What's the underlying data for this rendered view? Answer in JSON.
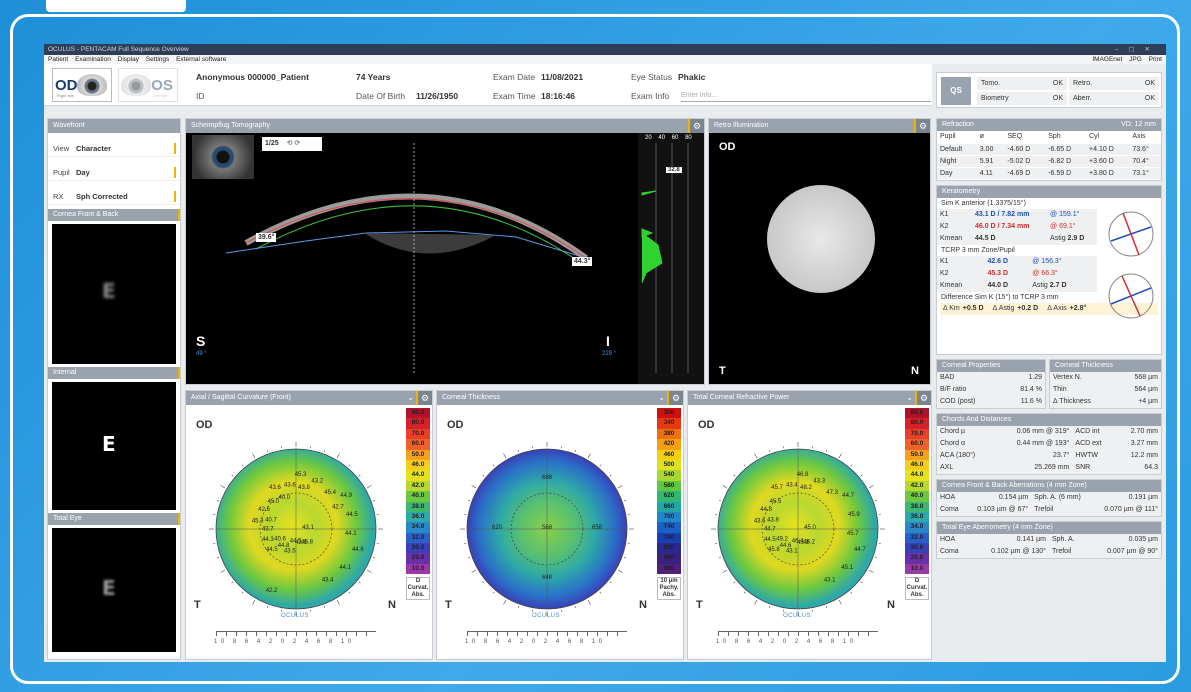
{
  "window": {
    "title": "OCULUS - PENTACAM  Full Sequence Overview"
  },
  "menu": {
    "items": [
      "Patient",
      "Examination",
      "Display",
      "Settings",
      "External software"
    ],
    "right": [
      "IMAGEnet",
      "JPG",
      "Print"
    ]
  },
  "header": {
    "od_label": "OD",
    "od_sub": "Right eye",
    "os_label": "OS",
    "os_sub": "Left eye",
    "patient_name": "Anonymous 000000_Patient",
    "id_label": "ID",
    "age": "74 Years",
    "dob_label": "Date Of Birth",
    "dob": "11/26/1950",
    "exam_date_label": "Exam Date",
    "exam_date": "11/08/2021",
    "exam_time_label": "Exam Time",
    "exam_time": "18:16:46",
    "eye_status_label": "Eye Status",
    "eye_status": "Phakic",
    "exam_info_label": "Exam Info",
    "exam_info_placeholder": "Enter Info..."
  },
  "qs": {
    "label": "QS",
    "items": [
      {
        "k": "Tomo.",
        "v": "OK"
      },
      {
        "k": "Retro.",
        "v": "OK"
      },
      {
        "k": "Biometry",
        "v": "OK"
      },
      {
        "k": "Aberr.",
        "v": "OK"
      }
    ]
  },
  "wavefront": {
    "title": "Wavefront",
    "rows": [
      {
        "k": "View",
        "v": "Character"
      },
      {
        "k": "Pupil",
        "v": "Day"
      },
      {
        "k": "RX",
        "v": "Sph Corrected"
      }
    ],
    "cornea_title": "Cornea Front & Back",
    "internal_title": "Internal",
    "total_title": "Total Eye",
    "letter": "E"
  },
  "scheimpflug": {
    "title": "Scheimpflug Tomography",
    "counter": "1/25",
    "angle_left": "39.6°",
    "angle_right": "44.3°",
    "s": "S",
    "s_deg": "49 °",
    "i": "I",
    "i_deg": "229 °",
    "hist_labels": [
      "20",
      "40",
      "60",
      "80"
    ],
    "hist_value": "32.8"
  },
  "retro": {
    "title": "Retro Illumination",
    "od": "OD",
    "t": "T",
    "n": "N"
  },
  "refraction": {
    "title": "Refraction",
    "vd": "VD: 12 mm",
    "cols": [
      "Pupil",
      "ø",
      "SEQ",
      "Sph",
      "Cyl",
      "Axis"
    ],
    "rows": [
      [
        "Default",
        "3.00",
        "-4.60 D",
        "-6.65 D",
        "+4.10 D",
        "73.6°"
      ],
      [
        "Night",
        "5.91",
        "-5.02 D",
        "-6.82 D",
        "+3.60 D",
        "70.4°"
      ],
      [
        "Day",
        "4.11",
        "-4.69 D",
        "-6.59 D",
        "+3.80 D",
        "73.1°"
      ]
    ]
  },
  "keratometry": {
    "title": "Keratometry",
    "simk_label": "Sim K anterior (1.3375/15°)",
    "k1": "43.1 D / 7.82 mm",
    "k1_axis": "@  159.1°",
    "k2": "46.0 D / 7.34 mm",
    "k2_axis": "@  69.1°",
    "kmean": "44.5 D",
    "astig": "2.9 D",
    "tcrp_label": "TCRP 3 mm Zone/Pupil",
    "t_k1": "42.6 D",
    "t_k1_axis": "@  156.3°",
    "t_k2": "45.3 D",
    "t_k2_axis": "@  66.3°",
    "t_kmean": "44.0 D",
    "t_astig": "2.7 D",
    "diff_label": "Difference Sim K (15°) to TCRP 3 mm",
    "d_km_k": "Δ Km",
    "d_km": "+0.5 D",
    "d_astig_k": "Δ Astig",
    "d_astig": "+0.2 D",
    "d_axis_k": "Δ Axis",
    "d_axis": "+2.8°",
    "k1_label": "K1",
    "k2_label": "K2",
    "kmean_label": "Kmean",
    "astig_label": "Astig"
  },
  "corneal_props": {
    "title": "Corneal Properties",
    "rows": [
      [
        "BAD",
        "1.29"
      ],
      [
        "B/F ratio",
        "81.4 %"
      ],
      [
        "COD (post)",
        "11.6 %"
      ]
    ]
  },
  "corneal_thick": {
    "title": "Corneal Thickness",
    "rows": [
      [
        "Vertex N.",
        "568 µm"
      ],
      [
        "Thin",
        "564 µm"
      ],
      [
        "Δ Thickness",
        "+4 µm"
      ]
    ]
  },
  "chords": {
    "title": "Chords And Distances",
    "rows": [
      [
        "Chord µ",
        "0.06 mm @ 319°",
        "ACD int",
        "2.70 mm"
      ],
      [
        "Chord α",
        "0.44 mm @ 193°",
        "ACD ext",
        "3.27 mm"
      ],
      [
        "ACA (180°)",
        "23.7°",
        "HWTW",
        "12.2 mm"
      ],
      [
        "AXL",
        "25.269 mm",
        "SNR",
        "64.3"
      ]
    ]
  },
  "cornea_aberr": {
    "title": "Cornea Front & Back Aberrations (4 mm Zone)",
    "rows": [
      [
        "HOA",
        "0.154 µm",
        "Sph. A. (6 mm)",
        "0.191 µm"
      ],
      [
        "Coma",
        "0.103 µm @ 67°",
        "Trefoil",
        "0.070 µm @ 111°"
      ]
    ]
  },
  "total_aberr": {
    "title": "Total Eye Aberrometry (4 mm Zone)",
    "rows": [
      [
        "HOA",
        "0.141 µm",
        "Sph. A.",
        "0.035 µm"
      ],
      [
        "Coma",
        "0.102 µm @ 130°",
        "Trefoil",
        "0.007 µm @ 90°"
      ]
    ]
  },
  "map1": {
    "title": "Axial / Sagittal Curvature (Front)",
    "od": "OD",
    "t": "T",
    "n": "N",
    "scale": [
      "90.0",
      "80.0",
      "70.0",
      "60.0",
      "50.0",
      "46.0",
      "44.0",
      "42.0",
      "40.0",
      "38.0",
      "36.0",
      "34.0",
      "32.0",
      "30.0",
      "20.0",
      "10.0"
    ],
    "unit": [
      "D",
      "Curvat.",
      "Abs."
    ],
    "values": [
      "43.1",
      "44.5",
      "45.3",
      "45.8",
      "45.3",
      "44.9",
      "43.5",
      "43.6",
      "44.6",
      "44.3",
      "43.2",
      "43.6",
      "42.6",
      "44.5",
      "44.8",
      "43.6",
      "44.1",
      "43.7",
      "45.4",
      "44.5",
      "45.0",
      "44.1",
      "40.6",
      "43.8",
      "43.4",
      "40.7",
      "42.7",
      "42.2",
      "40.0"
    ],
    "logo": "OCULUS"
  },
  "map2": {
    "title": "Corneal Thickness",
    "od": "OD",
    "t": "T",
    "n": "N",
    "scale": [
      "300",
      "340",
      "380",
      "420",
      "460",
      "500",
      "540",
      "580",
      "620",
      "660",
      "700",
      "740",
      "780",
      "820",
      "860",
      "900"
    ],
    "unit": [
      "10 µm",
      "Pachy.",
      "Abs."
    ],
    "values": [
      "688",
      "620",
      "568",
      "658",
      "648"
    ],
    "logo": "OCULUS"
  },
  "map3": {
    "title": "Total Corneal Refractive Power",
    "od": "OD",
    "t": "T",
    "n": "N",
    "scale": [
      "90.0",
      "80.0",
      "70.0",
      "60.0",
      "50.0",
      "46.0",
      "44.0",
      "42.0",
      "40.0",
      "38.0",
      "36.0",
      "34.0",
      "32.0",
      "30.0",
      "20.0",
      "10.0"
    ],
    "unit": [
      "D",
      "Curvat.",
      "Abs."
    ],
    "values": [
      "45.0",
      "45.8",
      "46.8",
      "46.2",
      "43.6",
      "44.7",
      "43.1",
      "45.7",
      "44.7",
      "44.5",
      "43.3",
      "43.9",
      "44.8",
      "45.9",
      "44.6",
      "43.4",
      "45.1",
      "44.7",
      "47.3",
      "46.4",
      "45.5",
      "45.7",
      "49.2",
      "48.2",
      "43.1",
      "43.8"
    ],
    "logo": "OCULUS"
  },
  "colors": {
    "accent": "#f0b400",
    "header_bg": "#9aa3ad",
    "blue_text": "#1f4fb4",
    "red_text": "#d42b2b"
  }
}
